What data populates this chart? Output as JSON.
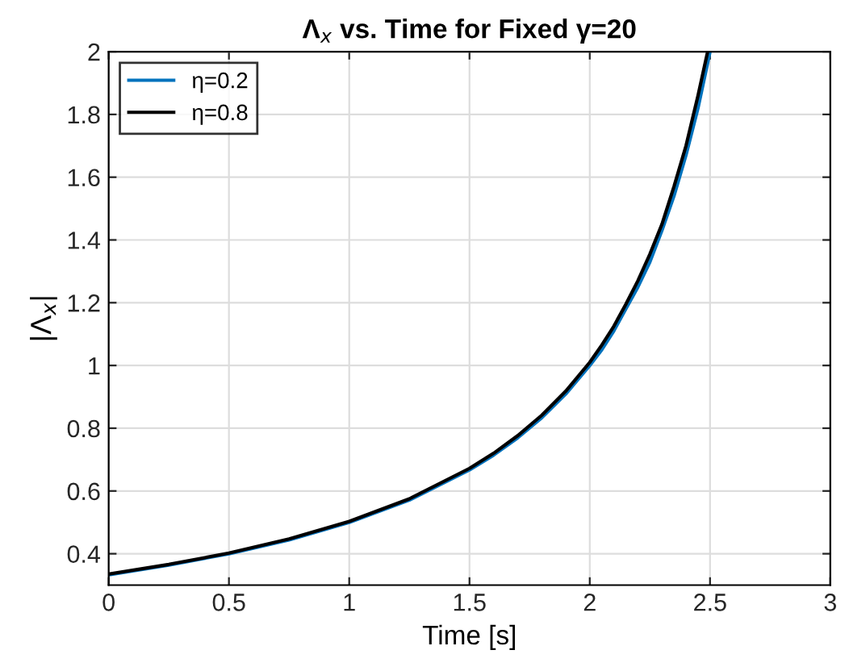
{
  "chart_data": {
    "type": "line",
    "title": "Λ$_{x}$ vs. Time for Fixed γ=20",
    "xlabel": "Time [s]",
    "ylabel": "|Λ$_{x}$|",
    "xlim": [
      0,
      3
    ],
    "ylim": [
      0.3,
      2
    ],
    "xticks": [
      0,
      0.5,
      1,
      1.5,
      2,
      2.5,
      3
    ],
    "yticks": [
      0.4,
      0.6,
      0.8,
      1,
      1.2,
      1.4,
      1.6,
      1.8,
      2
    ],
    "grid": true,
    "legend": "top left",
    "marker": "none",
    "line_style": "solid",
    "series": [
      {
        "name": "η=0.2",
        "color": "#0072bd",
        "x": [
          0,
          0.25,
          0.5,
          0.75,
          1,
          1.25,
          1.5,
          1.6,
          1.7,
          1.8,
          1.9,
          2,
          2.05,
          2.1,
          2.15,
          2.2,
          2.25,
          2.3,
          2.35,
          2.4,
          2.45,
          2.5
        ],
        "values": [
          0.333,
          0.364,
          0.4,
          0.444,
          0.5,
          0.571,
          0.667,
          0.714,
          0.769,
          0.833,
          0.909,
          1.0,
          1.05,
          1.11,
          1.18,
          1.25,
          1.33,
          1.43,
          1.54,
          1.67,
          1.82,
          2.0
        ]
      },
      {
        "name": "η=0.8",
        "color": "#000000",
        "x": [
          0,
          0.25,
          0.5,
          0.75,
          1,
          1.25,
          1.5,
          1.6,
          1.7,
          1.8,
          1.9,
          2,
          2.05,
          2.1,
          2.15,
          2.2,
          2.25,
          2.3,
          2.35,
          2.4,
          2.45,
          2.49
        ],
        "values": [
          0.335,
          0.366,
          0.402,
          0.447,
          0.503,
          0.575,
          0.672,
          0.72,
          0.776,
          0.841,
          0.918,
          1.01,
          1.065,
          1.125,
          1.195,
          1.27,
          1.355,
          1.45,
          1.57,
          1.7,
          1.86,
          2.0
        ]
      }
    ]
  }
}
